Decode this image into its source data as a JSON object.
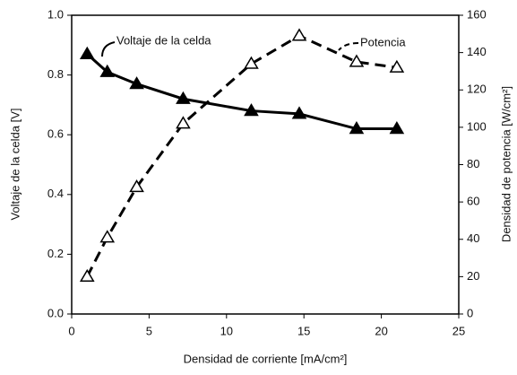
{
  "chart_data": {
    "type": "line",
    "xlabel": "Densidad de corriente [mA/cm²]",
    "ylabel": "Voltaje de la celda [V]",
    "y2label": "Densidad de potencia [W/cm²]",
    "xlim": [
      0,
      25
    ],
    "xticks": [
      0,
      5,
      10,
      15,
      20,
      25
    ],
    "ylim": [
      0,
      1
    ],
    "yticks": [
      {
        "value": 0,
        "label": "0.0"
      },
      0.2,
      0.4,
      0.6,
      0.8,
      {
        "value": 1,
        "label": "1.0"
      }
    ],
    "y2lim": [
      0,
      160
    ],
    "y2ticks": [
      0,
      20,
      40,
      60,
      80,
      100,
      120,
      140,
      160
    ],
    "series": [
      {
        "name": "Voltaje de la celda",
        "color": "#000000",
        "line_style": "solid",
        "marker": "filled",
        "x": [
          1.0,
          2.3,
          4.2,
          7.2,
          11.6,
          14.7,
          18.4,
          21.0
        ],
        "values": [
          0.87,
          0.81,
          0.77,
          0.72,
          0.68,
          0.67,
          0.62,
          0.62
        ]
      },
      {
        "name": "Potencia",
        "color": "#000000",
        "line_style": "dashed",
        "marker": "open",
        "axis": "y2",
        "x": [
          1.0,
          2.3,
          4.2,
          7.2,
          11.6,
          14.7,
          18.4,
          21.0
        ],
        "values": [
          20,
          41,
          68,
          102,
          134,
          149,
          135,
          132
        ]
      }
    ]
  }
}
